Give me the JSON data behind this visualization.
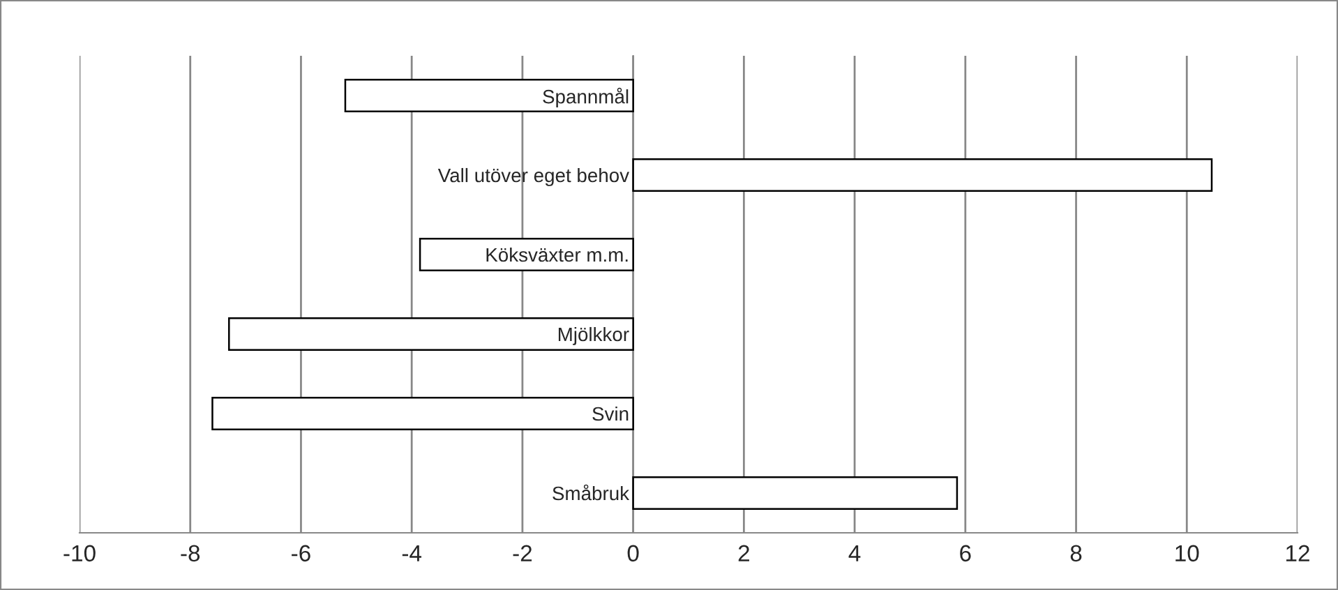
{
  "chart_data": {
    "type": "bar",
    "orientation": "horizontal",
    "categories": [
      "Spannmål",
      "Vall utöver eget behov",
      "Köksväxter m.m.",
      "Mjölkkor",
      "Svin",
      "Småbruk"
    ],
    "values": [
      -5.2,
      10.45,
      -3.85,
      -7.3,
      -7.6,
      5.85
    ],
    "color": "#ffffff",
    "xlim": [
      -10,
      12
    ],
    "xticks": [
      -10,
      -8,
      -6,
      -4,
      -2,
      0,
      2,
      4,
      6,
      8,
      10,
      12
    ],
    "grid": "x",
    "legend": false
  }
}
